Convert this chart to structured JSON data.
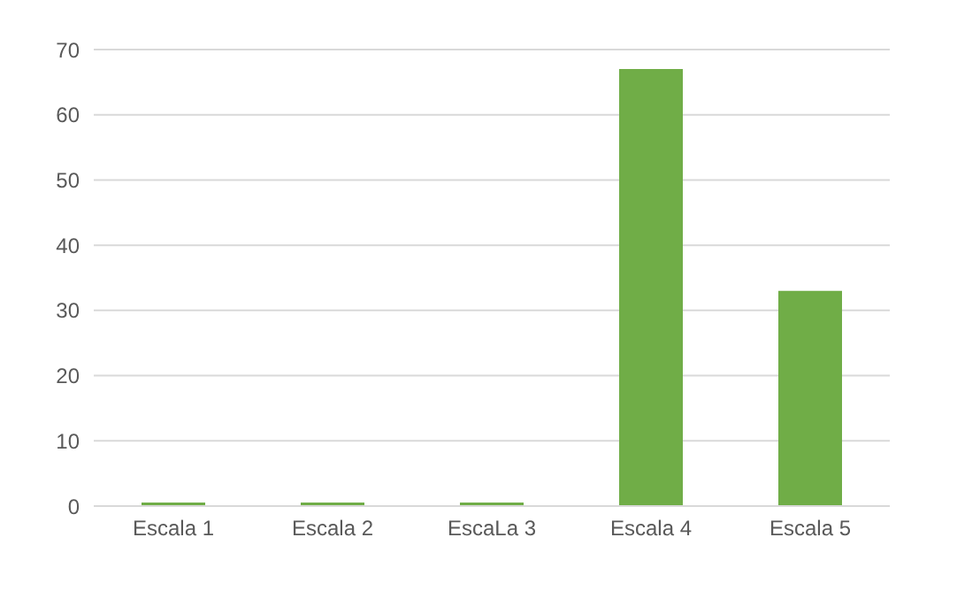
{
  "chart_data": {
    "type": "bar",
    "categories": [
      "Escala 1",
      "Escala 2",
      "EscaLa 3",
      "Escala 4",
      "Escala 5"
    ],
    "values": [
      0,
      0,
      0,
      67,
      33
    ],
    "color": "#70ad47",
    "ylim": [
      0,
      70
    ],
    "yticks": [
      0,
      10,
      20,
      30,
      40,
      50,
      60,
      70
    ],
    "grid": "y"
  }
}
